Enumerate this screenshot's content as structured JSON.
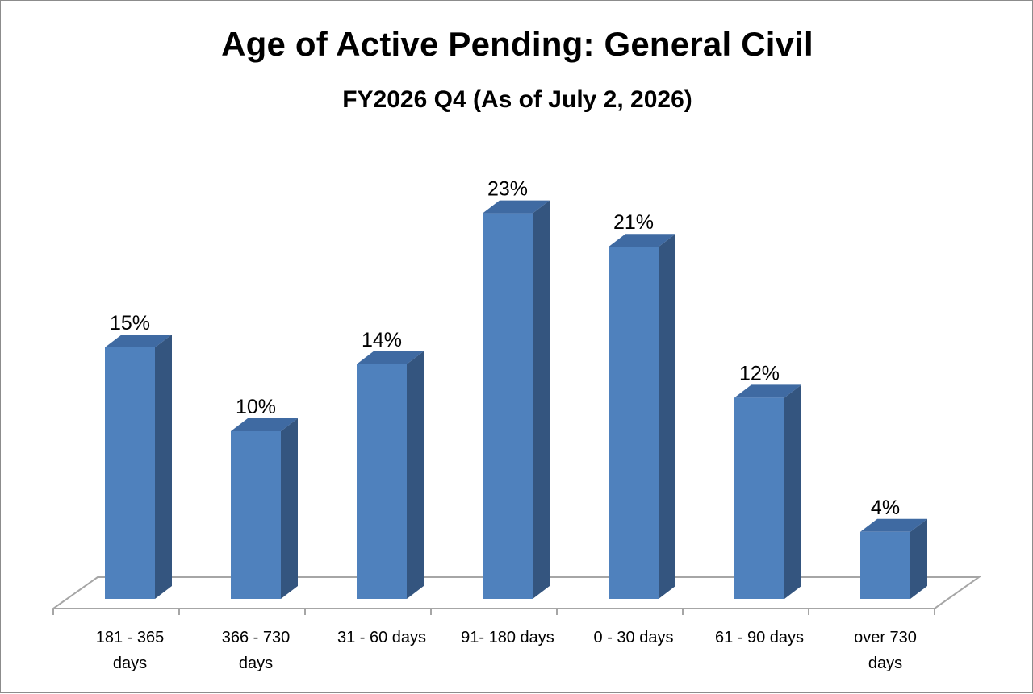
{
  "chart_data": {
    "type": "bar",
    "title": "Age of Active Pending: General Civil",
    "subtitle": "FY2026 Q4 (As of July 2, 2026)",
    "categories": [
      "181 - 365 days",
      "366 - 730 days",
      "31 - 60 days",
      "91- 180 days",
      "0 - 30 days",
      "61 - 90 days",
      "over 730 days"
    ],
    "category_label_lines": [
      [
        "181 - 365",
        "days"
      ],
      [
        "366 - 730",
        "days"
      ],
      [
        "31 - 60 days"
      ],
      [
        "91- 180 days"
      ],
      [
        "0 - 30 days"
      ],
      [
        "61 - 90 days"
      ],
      [
        "over 730",
        "days"
      ]
    ],
    "values": [
      15,
      10,
      14,
      23,
      21,
      12,
      4
    ],
    "data_labels": [
      "15%",
      "10%",
      "14%",
      "23%",
      "21%",
      "12%",
      "4%"
    ],
    "unit": "%",
    "xlabel": "",
    "ylabel": "",
    "ylim": [
      0,
      25
    ],
    "style": "3d-column",
    "grid": false,
    "legend": "none",
    "colors": {
      "bar_front": "#4f81bd",
      "bar_side": "#34557f",
      "bar_top": "#3f6aa2",
      "floor_stroke": "#a6a6a6"
    }
  }
}
